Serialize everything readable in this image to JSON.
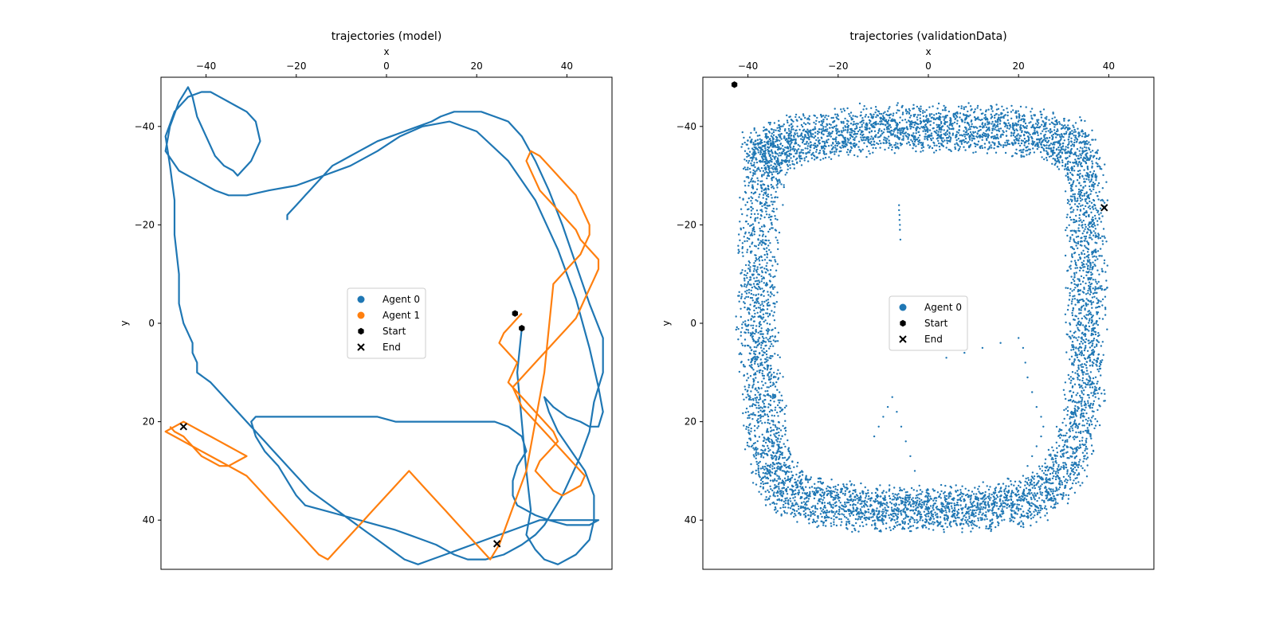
{
  "chart_data": [
    {
      "type": "line",
      "title": "trajectories (model)",
      "xlabel": "x",
      "ylabel": "y",
      "xlim": [
        -50,
        50
      ],
      "ylim": [
        50,
        -50
      ],
      "x_ticks": [
        -40,
        -20,
        0,
        20,
        40
      ],
      "y_ticks": [
        -40,
        -20,
        0,
        20,
        40
      ],
      "x_axis_position": "top",
      "y_axis_inverted": true,
      "grid": false,
      "legend": {
        "placement": "center",
        "entries": [
          {
            "label": "Agent 0",
            "marker": "circle",
            "color": "#1f77b4"
          },
          {
            "label": "Agent 1",
            "marker": "circle",
            "color": "#ff7f0e"
          },
          {
            "label": "Start",
            "marker": "hexagon",
            "color": "#000000"
          },
          {
            "label": "End",
            "marker": "x",
            "color": "#000000"
          }
        ]
      },
      "series": [
        {
          "name": "Agent 0",
          "color": "#1f77b4",
          "style": "line",
          "x": [
            30,
            29,
            30,
            31,
            32,
            31,
            33,
            35,
            38,
            42,
            45,
            46,
            46,
            44,
            41,
            38,
            36,
            35,
            37,
            40,
            43,
            45,
            47,
            48,
            47,
            45,
            42,
            38,
            33,
            27,
            20,
            14,
            8,
            3,
            -2,
            -8,
            -14,
            -20,
            -26,
            -31,
            -35,
            -38,
            -42,
            -46,
            -49,
            -48,
            -46,
            -44,
            -43,
            -42,
            -40,
            -38,
            -36,
            -34,
            -33,
            -32,
            -30,
            -28,
            -29,
            -31,
            -33,
            -35,
            -37,
            -39,
            -41,
            -44,
            -47,
            -49,
            -48,
            -47,
            -47,
            -46,
            -46,
            -45,
            -44,
            -43,
            -43,
            -42,
            -42,
            -39,
            -37,
            -35,
            -33,
            -31,
            -29,
            -27,
            -25,
            -23,
            -21,
            -19,
            -17,
            -14,
            -11,
            -8,
            -5,
            -2,
            1,
            4,
            7,
            10,
            13,
            16,
            19,
            22,
            25,
            28,
            31,
            34,
            37,
            39,
            41,
            43,
            46,
            47,
            45,
            40,
            36,
            33,
            31,
            29,
            28,
            28,
            29,
            31,
            30,
            27,
            24,
            21,
            18,
            14,
            10,
            6,
            2,
            -2,
            -6,
            -10,
            -14,
            -18,
            -22,
            -26,
            -29,
            -30,
            -29,
            -27,
            -24,
            -22,
            -20,
            -18,
            -14,
            -10,
            -6,
            -2,
            2,
            5,
            8,
            11,
            13,
            15,
            18,
            22,
            26,
            30,
            33,
            35,
            37,
            39,
            41,
            43,
            45,
            46,
            48,
            48,
            45,
            42,
            39,
            36,
            33,
            30,
            27,
            24,
            21,
            18,
            15,
            12,
            10,
            7,
            4,
            1,
            -2,
            -4,
            -6,
            -8,
            -10,
            -12,
            -13,
            -14,
            -15,
            -16,
            -17,
            -18,
            -19,
            -20,
            -21,
            -22,
            -22
          ],
          "y": [
            1,
            10,
            20,
            30,
            38,
            43,
            46,
            48,
            49,
            47,
            44,
            40,
            35,
            30,
            26,
            22,
            18,
            15,
            17,
            19,
            20,
            21,
            21,
            18,
            13,
            5,
            -5,
            -15,
            -25,
            -33,
            -39,
            -41,
            -40,
            -38,
            -35,
            -32,
            -30,
            -28,
            -27,
            -26,
            -26,
            -27,
            -29,
            -31,
            -35,
            -40,
            -45,
            -48,
            -46,
            -42,
            -38,
            -34,
            -32,
            -31,
            -30,
            -31,
            -33,
            -37,
            -41,
            -43,
            -44,
            -45,
            -46,
            -47,
            -47,
            -46,
            -43,
            -38,
            -32,
            -25,
            -18,
            -10,
            -4,
            0,
            2,
            4,
            6,
            8,
            10,
            12,
            14,
            16,
            18,
            20,
            22,
            24,
            26,
            28,
            30,
            32,
            34,
            36,
            38,
            40,
            42,
            44,
            46,
            48,
            49,
            48,
            47,
            46,
            45,
            44,
            43,
            42,
            41,
            40,
            40,
            40,
            40,
            40,
            40,
            40,
            41,
            41,
            40,
            39,
            38,
            37,
            35,
            32,
            29,
            26,
            23,
            21,
            20,
            20,
            20,
            20,
            20,
            20,
            20,
            19,
            19,
            19,
            19,
            19,
            19,
            19,
            19,
            20,
            23,
            26,
            29,
            32,
            35,
            37,
            38,
            39,
            40,
            41,
            42,
            43,
            44,
            45,
            46,
            47,
            48,
            48,
            47,
            45,
            43,
            41,
            38,
            35,
            31,
            27,
            22,
            16,
            10,
            3,
            -4,
            -12,
            -20,
            -27,
            -33,
            -38,
            -41,
            -42,
            -43,
            -43,
            -43,
            -42,
            -41,
            -40,
            -39,
            -38,
            -37,
            -36,
            -35,
            -34,
            -33,
            -32,
            -31,
            -30,
            -29,
            -28,
            -27,
            -26,
            -25,
            -24,
            -23,
            -22,
            -21
          ]
        },
        {
          "name": "Agent 1",
          "color": "#ff7f0e",
          "style": "line",
          "x": [
            30,
            28,
            26,
            25,
            27,
            29,
            28,
            27,
            29,
            31,
            33,
            35,
            37,
            38,
            36,
            34,
            33,
            35,
            37,
            39,
            41,
            43,
            44,
            42,
            40,
            38,
            36,
            34,
            32,
            30,
            29,
            28,
            30,
            32,
            34,
            36,
            38,
            40,
            42,
            43,
            44,
            45,
            46,
            47,
            47,
            45,
            43,
            42,
            40,
            38,
            36,
            34,
            33,
            32,
            31,
            32,
            34,
            36,
            38,
            40,
            42,
            43,
            44,
            45,
            45,
            44,
            43,
            41,
            39,
            37,
            35,
            33,
            31,
            29,
            27,
            25,
            23,
            21,
            19,
            17,
            15,
            13,
            11,
            9,
            7,
            5,
            3,
            1,
            -1,
            -3,
            -5,
            -7,
            -9,
            -11,
            -13,
            -15,
            -17,
            -19,
            -21,
            -23,
            -25,
            -27,
            -29,
            -31,
            -33,
            -35,
            -37,
            -39,
            -41,
            -43,
            -45,
            -47,
            -49,
            -47,
            -45,
            -43,
            -41,
            -39,
            -37,
            -35,
            -33,
            -31,
            -33,
            -35,
            -37,
            -39,
            -41,
            -43,
            -45,
            -47,
            -48
          ],
          "y": [
            -2,
            0,
            2,
            4,
            6,
            8,
            10,
            12,
            14,
            16,
            18,
            20,
            22,
            24,
            26,
            28,
            30,
            32,
            34,
            35,
            34,
            33,
            31,
            29,
            27,
            25,
            23,
            21,
            19,
            17,
            15,
            13,
            11,
            9,
            7,
            5,
            3,
            1,
            -1,
            -3,
            -5,
            -7,
            -9,
            -11,
            -13,
            -15,
            -17,
            -19,
            -21,
            -23,
            -25,
            -27,
            -29,
            -31,
            -33,
            -35,
            -34,
            -32,
            -30,
            -28,
            -26,
            -24,
            -22,
            -20,
            -18,
            -16,
            -14,
            -12,
            -10,
            -8,
            10,
            20,
            30,
            35,
            40,
            45,
            48,
            46,
            44,
            42,
            40,
            38,
            36,
            34,
            32,
            30,
            32,
            34,
            36,
            38,
            40,
            42,
            44,
            46,
            48,
            47,
            45,
            43,
            41,
            39,
            37,
            35,
            33,
            31,
            30,
            29,
            28,
            27,
            26,
            25,
            24,
            23,
            22,
            21,
            20,
            21,
            22,
            23,
            24,
            25,
            26,
            27,
            28,
            29,
            29,
            28,
            27,
            25,
            23,
            22,
            21
          ]
        },
        {
          "name": "Start",
          "color": "#000000",
          "style": "marker",
          "marker": "hexagon",
          "x": [
            28.5,
            30.0
          ],
          "y": [
            -2,
            1
          ]
        },
        {
          "name": "End",
          "color": "#000000",
          "style": "marker",
          "marker": "x",
          "x": [
            -45.0,
            24.5
          ],
          "y": [
            21.0,
            44.8
          ]
        }
      ]
    },
    {
      "type": "scatter",
      "title": "trajectories (validationData)",
      "xlabel": "x",
      "ylabel": "y",
      "xlim": [
        -50,
        50
      ],
      "ylim": [
        50,
        -50
      ],
      "x_ticks": [
        -40,
        -20,
        0,
        20,
        40
      ],
      "y_ticks": [
        -40,
        -20,
        0,
        20,
        40
      ],
      "x_axis_position": "top",
      "y_axis_inverted": true,
      "grid": false,
      "legend": {
        "placement": "center",
        "entries": [
          {
            "label": "Agent 0",
            "marker": "circle",
            "color": "#1f77b4"
          },
          {
            "label": "Start",
            "marker": "hexagon",
            "color": "#000000"
          },
          {
            "label": "End",
            "marker": "x",
            "color": "#000000"
          }
        ]
      },
      "series": [
        {
          "name": "Agent 0",
          "color": "#1f77b4",
          "style": "dots",
          "path_x": [
            -40,
            -38,
            -36,
            -33,
            -30,
            -26,
            -22,
            -18,
            -14,
            -10,
            -6,
            -2,
            2,
            6,
            10,
            14,
            18,
            22,
            26,
            30,
            33,
            35,
            37,
            38,
            38,
            38,
            38,
            38,
            38,
            38,
            38,
            37,
            36,
            34,
            31,
            28,
            24,
            20,
            16,
            12,
            8,
            4,
            0,
            -4,
            -8,
            -12,
            -16,
            -20,
            -24,
            -28,
            -32,
            -35,
            -37,
            -38,
            -39,
            -40,
            -40,
            -41,
            -41,
            -41,
            -41,
            -41,
            -40,
            -40
          ],
          "path_y": [
            -37,
            -38,
            -39,
            -40,
            -41,
            -41,
            -42,
            -42,
            -43,
            -43,
            -43,
            -43,
            -43,
            -43,
            -43,
            -43,
            -43,
            -42,
            -42,
            -41,
            -40,
            -38,
            -35,
            -30,
            -24,
            -18,
            -12,
            -6,
            0,
            6,
            12,
            18,
            24,
            30,
            34,
            37,
            39,
            40,
            40,
            41,
            41,
            41,
            41,
            41,
            41,
            41,
            41,
            40,
            40,
            39,
            38,
            36,
            33,
            29,
            24,
            18,
            12,
            6,
            0,
            -6,
            -12,
            -20,
            -28,
            -34
          ],
          "loops": 14,
          "jitter": 3.5,
          "extra_x": [
            -6.5,
            -6.5,
            -6.4,
            -6.4,
            -6.3,
            -6.3,
            -6.2,
            4,
            8,
            12,
            16,
            20,
            21,
            21.5,
            22,
            23,
            24,
            25,
            25.5,
            25,
            24,
            23,
            22,
            21,
            20,
            -7,
            -6,
            -5,
            -4,
            -3,
            -2,
            -8,
            -9,
            -10,
            -11,
            -12
          ],
          "extra_y": [
            -24,
            -23,
            -22,
            -21,
            -20,
            -19,
            -17,
            7,
            6,
            5,
            4,
            3,
            5,
            8,
            11,
            14,
            17,
            19,
            21,
            23,
            25,
            27,
            29,
            31,
            33,
            18,
            21,
            24,
            27,
            30,
            33,
            15,
            17,
            19,
            21,
            23
          ]
        },
        {
          "name": "Start",
          "color": "#000000",
          "style": "marker",
          "marker": "hexagon",
          "x": [
            -43.0
          ],
          "y": [
            -48.5
          ]
        },
        {
          "name": "End",
          "color": "#000000",
          "style": "marker",
          "marker": "x",
          "x": [
            39.0
          ],
          "y": [
            -23.5
          ]
        }
      ]
    }
  ]
}
